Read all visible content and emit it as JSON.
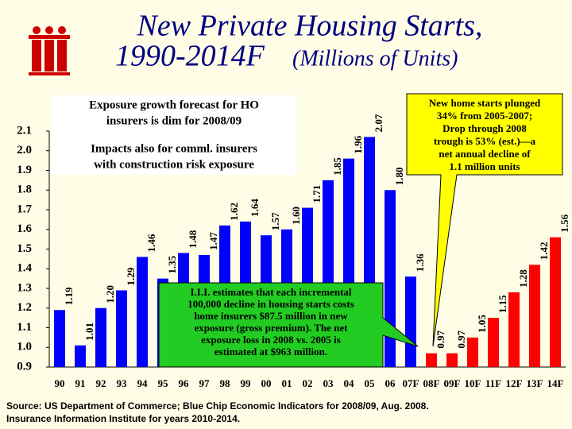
{
  "chart_data": {
    "type": "bar",
    "title": [
      "New Private Housing Starts,",
      "1990-2014F"
    ],
    "subtitle": "(Millions of Units)",
    "categories": [
      "90",
      "91",
      "92",
      "93",
      "94",
      "95",
      "96",
      "97",
      "98",
      "99",
      "00",
      "01",
      "02",
      "03",
      "04",
      "05",
      "06",
      "07F",
      "08F",
      "09F",
      "10F",
      "11F",
      "12F",
      "13F",
      "14F"
    ],
    "values": [
      1.19,
      1.01,
      1.2,
      1.29,
      1.46,
      1.35,
      1.48,
      1.47,
      1.62,
      1.64,
      1.57,
      1.6,
      1.71,
      1.85,
      1.96,
      2.07,
      1.8,
      1.36,
      0.97,
      0.97,
      1.05,
      1.15,
      1.28,
      1.42,
      1.56
    ],
    "value_labels": [
      "1.19",
      "1.01",
      "1.20",
      "1.29",
      "1.46",
      "1.35",
      "1.48",
      "1.47",
      "1.62",
      "1.64",
      "1.57",
      "1.60",
      "1.71",
      "1.85",
      "1.96",
      "2.07",
      "1.80",
      "1.36",
      "0.97",
      "0.97",
      "1.05",
      "1.15",
      "1.28",
      "1.42",
      "1.56"
    ],
    "colors": [
      "#0000ff",
      "#0000ff",
      "#0000ff",
      "#0000ff",
      "#0000ff",
      "#0000ff",
      "#0000ff",
      "#0000ff",
      "#0000ff",
      "#0000ff",
      "#0000ff",
      "#0000ff",
      "#0000ff",
      "#0000ff",
      "#0000ff",
      "#0000ff",
      "#0000ff",
      "#0000ff",
      "#ff0000",
      "#ff0000",
      "#ff0000",
      "#ff0000",
      "#ff0000",
      "#ff0000",
      "#ff0000"
    ],
    "ylim": [
      0.9,
      2.1
    ],
    "yticks": [
      0.9,
      {
        "value": 1.0,
        "label": "1.0"
      },
      1.1,
      1.2,
      1.3,
      1.4,
      1.5,
      1.6,
      1.7,
      1.8,
      1.9,
      {
        "value": 2.0,
        "label": "2.0"
      },
      2.1
    ],
    "annotations": [
      [
        "Exposure growth forecast for HO",
        "insurers is dim for 2008/09",
        "Impacts also for comml. insurers",
        "with construction risk exposure"
      ],
      [
        "New home starts plunged",
        "34% from 2005-2007;",
        "Drop through 2008",
        "trough is 53% (est.)—a",
        "net annual decline of",
        "1.1 million units"
      ],
      [
        "I.I.I. estimates that each incremental",
        "100,000 decline in housing starts costs",
        "home insurers $87.5 million in new",
        "exposure (gross premium).  The net",
        "exposure loss in 2008 vs. 2005 is",
        "estimated at $963 million."
      ]
    ],
    "source": [
      "Source: US Department of Commerce; Blue Chip Economic Indicators for 2008/09, Aug. 2008.",
      "Insurance Information Institute for years 2010-2014."
    ]
  }
}
